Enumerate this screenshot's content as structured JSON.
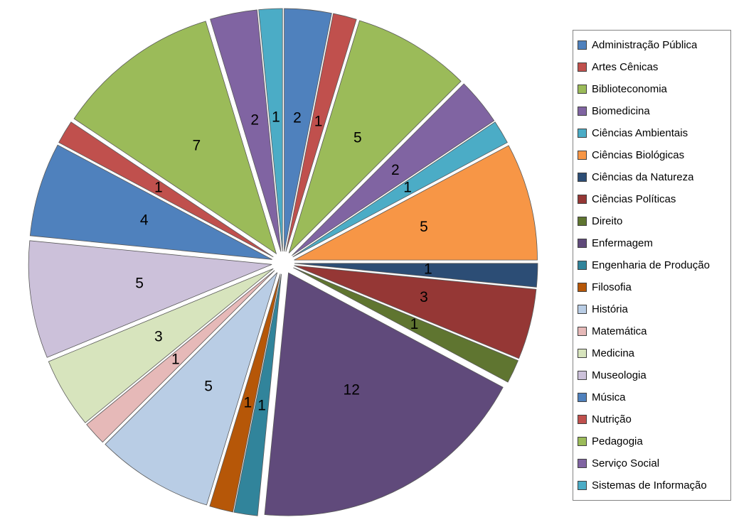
{
  "chart_data": {
    "type": "pie",
    "title": "",
    "total": 64,
    "direction": "clockwise",
    "start_angle_deg": 0,
    "exploded": true,
    "legend_position": "right",
    "data_labels": "value",
    "label_color": "#000000",
    "background": "#FFFFFF",
    "slice_border_color": "#5A5A5A",
    "legend_border_color": "#848484",
    "slices": [
      {
        "label": "Administração Pública",
        "value": 2,
        "color": "#4F81BD"
      },
      {
        "label": "Artes Cênicas",
        "value": 1,
        "color": "#C0504D"
      },
      {
        "label": "Biblioteconomia",
        "value": 5,
        "color": "#9BBB59"
      },
      {
        "label": "Biomedicina",
        "value": 2,
        "color": "#8064A2"
      },
      {
        "label": "Ciências Ambientais",
        "value": 1,
        "color": "#4BACC6"
      },
      {
        "label": "Ciências Biológicas",
        "value": 5,
        "color": "#F79646"
      },
      {
        "label": "Ciências da Natureza",
        "value": 1,
        "color": "#2C4D75"
      },
      {
        "label": "Ciências Políticas",
        "value": 3,
        "color": "#953735"
      },
      {
        "label": "Direito",
        "value": 1,
        "color": "#5F7530"
      },
      {
        "label": "Enfermagem",
        "value": 12,
        "color": "#604A7B"
      },
      {
        "label": "Engenharia de Produção",
        "value": 1,
        "color": "#31849B"
      },
      {
        "label": "Filosofia",
        "value": 1,
        "color": "#B65708"
      },
      {
        "label": "História",
        "value": 5,
        "color": "#B9CDE5"
      },
      {
        "label": "Matemática",
        "value": 1,
        "color": "#E6B9B8"
      },
      {
        "label": "Medicina",
        "value": 3,
        "color": "#D7E4BD"
      },
      {
        "label": "Museologia",
        "value": 5,
        "color": "#CCC1DA"
      },
      {
        "label": "Música",
        "value": 4,
        "color": "#4F81BD"
      },
      {
        "label": "Nutrição",
        "value": 1,
        "color": "#C0504D"
      },
      {
        "label": "Pedagogia",
        "value": 7,
        "color": "#9BBB59"
      },
      {
        "label": "Serviço Social",
        "value": 2,
        "color": "#8064A2"
      },
      {
        "label": "Sistemas de Informação",
        "value": 1,
        "color": "#4BACC6"
      }
    ]
  }
}
